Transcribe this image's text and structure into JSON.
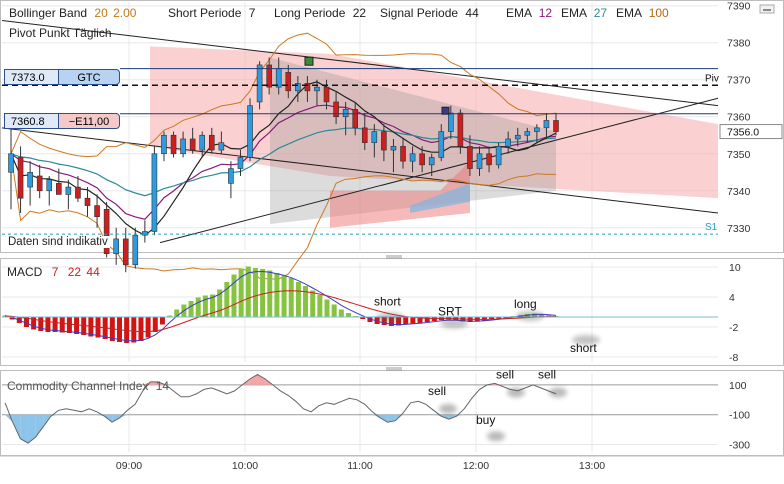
{
  "colors": {
    "background": "#ffffff",
    "grid": "#e8e8e8",
    "axis_text": "#333333",
    "candle_up": "#2e9be0",
    "candle_down": "#cc1f1f",
    "macd_positive": "#86c440",
    "macd_negative": "#d11414",
    "macd_line": "#3c3cc8",
    "signal_line": "#cc2020",
    "cci_line": "#666666",
    "cci_fill_positive": "#f3a6a6",
    "cci_fill_negative": "#8cc4ea",
    "ema12": "#8b1a7a",
    "ema27": "#2a8a9a",
    "ema100": "#b26a14",
    "bollinger": "#cc7a22",
    "pivot_line": "#111111",
    "gtc_line": "#1a3a7a",
    "s1_line": "#2aa0b8",
    "indicator_names": "#333333"
  },
  "header": {
    "bollinger_label": "Bollinger Band",
    "bollinger_period": "20",
    "bollinger_dev": "2.00",
    "short_label": "Short Periode",
    "short_value": "7",
    "long_label": "Long Periode",
    "long_value": "22",
    "signal_label": "Signal Periode",
    "signal_value": "44",
    "ema_label_1": "EMA",
    "ema_value_1": "12",
    "ema_label_2": "EMA",
    "ema_value_2": "27",
    "ema_label_3": "EMA",
    "ema_value_3": "100",
    "pivot_label": "Pivot Punkt Täglich",
    "disclaimer": "Daten sind indikativ"
  },
  "orders": [
    {
      "price": "7373.0",
      "type": "GTC"
    },
    {
      "price": "7360.8",
      "pnl": "−E11,00"
    }
  ],
  "icons": {
    "minimize": "minimize-icon",
    "splitter": "splitter-grip-icon"
  },
  "chart_data": [
    {
      "type": "candlestick",
      "title": "",
      "instrument_axis": {
        "min": 7324,
        "max": 7391,
        "ticks": [
          7330,
          7340,
          7350,
          7360,
          7370,
          7380,
          7390
        ]
      },
      "time_ticks": [
        "09:00",
        "10:00",
        "11:00",
        "12:00",
        "13:00"
      ],
      "last_price": "7356.0",
      "levels": [
        {
          "name": "Piv",
          "value": 7368.5,
          "style": "dashed"
        },
        {
          "name": "S1",
          "value": 7328.3,
          "style": "dotted"
        },
        {
          "name": "GTC",
          "value": 7373.0,
          "style": "solid"
        },
        {
          "name": "Position",
          "value": 7360.8,
          "style": "solid"
        }
      ],
      "candles": [
        {
          "o": 7345,
          "h": 7358,
          "l": 7335,
          "c": 7350
        },
        {
          "o": 7349,
          "h": 7352,
          "l": 7334,
          "c": 7338
        },
        {
          "o": 7341,
          "h": 7348,
          "l": 7336,
          "c": 7345
        },
        {
          "o": 7344,
          "h": 7347,
          "l": 7338,
          "c": 7340
        },
        {
          "o": 7340,
          "h": 7344,
          "l": 7336,
          "c": 7343
        },
        {
          "o": 7342,
          "h": 7346,
          "l": 7339,
          "c": 7339
        },
        {
          "o": 7339,
          "h": 7343,
          "l": 7335,
          "c": 7341
        },
        {
          "o": 7341,
          "h": 7344,
          "l": 7337,
          "c": 7338
        },
        {
          "o": 7338,
          "h": 7341,
          "l": 7333,
          "c": 7336
        },
        {
          "o": 7336,
          "h": 7339,
          "l": 7330,
          "c": 7333
        },
        {
          "o": 7335,
          "h": 7337,
          "l": 7322,
          "c": 7323
        },
        {
          "o": 7323,
          "h": 7330,
          "l": 7320,
          "c": 7327
        },
        {
          "o": 7327,
          "h": 7330,
          "l": 7318,
          "c": 7320
        },
        {
          "o": 7320,
          "h": 7330,
          "l": 7319,
          "c": 7328
        },
        {
          "o": 7328,
          "h": 7332,
          "l": 7326,
          "c": 7329
        },
        {
          "o": 7329,
          "h": 7352,
          "l": 7328,
          "c": 7350
        },
        {
          "o": 7350,
          "h": 7356,
          "l": 7348,
          "c": 7355
        },
        {
          "o": 7355,
          "h": 7356,
          "l": 7349,
          "c": 7350
        },
        {
          "o": 7350,
          "h": 7356,
          "l": 7349,
          "c": 7354
        },
        {
          "o": 7354,
          "h": 7357,
          "l": 7350,
          "c": 7351
        },
        {
          "o": 7351,
          "h": 7356,
          "l": 7349,
          "c": 7355
        },
        {
          "o": 7355,
          "h": 7357,
          "l": 7350,
          "c": 7351
        },
        {
          "o": 7351,
          "h": 7356,
          "l": 7350,
          "c": 7353
        },
        {
          "o": 7342,
          "h": 7348,
          "l": 7338,
          "c": 7346
        },
        {
          "o": 7346,
          "h": 7351,
          "l": 7344,
          "c": 7349
        },
        {
          "o": 7349,
          "h": 7365,
          "l": 7348,
          "c": 7363
        },
        {
          "o": 7364,
          "h": 7375,
          "l": 7362,
          "c": 7374
        },
        {
          "o": 7374,
          "h": 7376,
          "l": 7366,
          "c": 7368
        },
        {
          "o": 7368,
          "h": 7376,
          "l": 7366,
          "c": 7373
        },
        {
          "o": 7372,
          "h": 7374,
          "l": 7365,
          "c": 7367
        },
        {
          "o": 7367,
          "h": 7371,
          "l": 7364,
          "c": 7369
        },
        {
          "o": 7369,
          "h": 7371,
          "l": 7364,
          "c": 7367
        },
        {
          "o": 7367,
          "h": 7370,
          "l": 7363,
          "c": 7368
        },
        {
          "o": 7368,
          "h": 7370,
          "l": 7362,
          "c": 7364
        },
        {
          "o": 7364,
          "h": 7367,
          "l": 7358,
          "c": 7360
        },
        {
          "o": 7360,
          "h": 7364,
          "l": 7355,
          "c": 7362
        },
        {
          "o": 7362,
          "h": 7364,
          "l": 7355,
          "c": 7357
        },
        {
          "o": 7357,
          "h": 7361,
          "l": 7351,
          "c": 7353
        },
        {
          "o": 7353,
          "h": 7358,
          "l": 7349,
          "c": 7356
        },
        {
          "o": 7356,
          "h": 7358,
          "l": 7348,
          "c": 7351
        },
        {
          "o": 7351,
          "h": 7354,
          "l": 7345,
          "c": 7352
        },
        {
          "o": 7352,
          "h": 7354,
          "l": 7346,
          "c": 7348
        },
        {
          "o": 7348,
          "h": 7352,
          "l": 7345,
          "c": 7350
        },
        {
          "o": 7350,
          "h": 7352,
          "l": 7345,
          "c": 7347
        },
        {
          "o": 7347,
          "h": 7350,
          "l": 7344,
          "c": 7349
        },
        {
          "o": 7349,
          "h": 7358,
          "l": 7348,
          "c": 7356
        },
        {
          "o": 7356,
          "h": 7363,
          "l": 7354,
          "c": 7361
        },
        {
          "o": 7361,
          "h": 7362,
          "l": 7350,
          "c": 7352
        },
        {
          "o": 7352,
          "h": 7355,
          "l": 7344,
          "c": 7346
        },
        {
          "o": 7346,
          "h": 7352,
          "l": 7344,
          "c": 7350
        },
        {
          "o": 7350,
          "h": 7352,
          "l": 7345,
          "c": 7347
        },
        {
          "o": 7347,
          "h": 7353,
          "l": 7346,
          "c": 7352
        },
        {
          "o": 7352,
          "h": 7356,
          "l": 7350,
          "c": 7354
        },
        {
          "o": 7354,
          "h": 7357,
          "l": 7352,
          "c": 7355
        },
        {
          "o": 7355,
          "h": 7357,
          "l": 7353,
          "c": 7356
        },
        {
          "o": 7356,
          "h": 7358,
          "l": 7353,
          "c": 7357
        },
        {
          "o": 7357,
          "h": 7361,
          "l": 7354,
          "c": 7359
        },
        {
          "o": 7359,
          "h": 7361,
          "l": 7355,
          "c": 7356
        }
      ]
    },
    {
      "type": "bar",
      "title": "MACD",
      "params": [
        "7",
        "22",
        "44"
      ],
      "y_ticks": [
        10,
        4,
        -2,
        -8
      ],
      "ylim": [
        -9,
        11
      ],
      "values": [
        0.3,
        -0.5,
        -1.2,
        -2.0,
        -2.5,
        -2.8,
        -3.0,
        -3.0,
        -3.1,
        -3.2,
        -3.4,
        -3.6,
        -3.9,
        -4.1,
        -4.4,
        -4.8,
        -5.0,
        -5.2,
        -5.1,
        -4.8,
        -4.1,
        -3.0,
        -1.5,
        0.3,
        1.5,
        2.5,
        3.2,
        3.9,
        4.3,
        4.5,
        5.5,
        7.0,
        8.5,
        9.7,
        10.1,
        9.8,
        9.6,
        9.3,
        8.8,
        8.4,
        7.8,
        7.0,
        6.2,
        5.3,
        4.4,
        3.5,
        2.5,
        1.5,
        0.8,
        0.2,
        -0.4,
        -1.0,
        -1.4,
        -1.6,
        -1.8,
        -1.7,
        -1.5,
        -1.3,
        -1.2,
        -1.0,
        -0.8,
        -0.6,
        -0.5,
        -0.7,
        -0.9,
        -1.0,
        -0.9,
        -0.7,
        -0.5,
        -0.3,
        -0.1,
        0.2,
        0.4,
        0.6,
        0.7,
        0.6,
        0.4,
        0.2
      ],
      "annotations": [
        {
          "text": "short",
          "value": 1.5
        },
        {
          "text": "SRT",
          "value": 0.3
        },
        {
          "text": "long",
          "value": 1.8
        },
        {
          "text": "short",
          "value": -2.2
        }
      ]
    },
    {
      "type": "line",
      "title": "Commodity Channel Index",
      "period": "14",
      "y_ticks": [
        100,
        -100,
        -300
      ],
      "ylim": [
        -350,
        180
      ],
      "values": [
        -20,
        -150,
        -260,
        -290,
        -250,
        -180,
        -110,
        -70,
        -60,
        -70,
        -80,
        -60,
        -80,
        -110,
        -150,
        -120,
        -70,
        -30,
        60,
        120,
        120,
        100,
        60,
        20,
        20,
        40,
        70,
        80,
        60,
        40,
        60,
        100,
        140,
        170,
        140,
        100,
        60,
        30,
        -10,
        -60,
        -80,
        -40,
        -20,
        -30,
        -10,
        10,
        0,
        -30,
        -80,
        -120,
        -150,
        -140,
        -90,
        -20,
        -10,
        -30,
        -70,
        -110,
        -130,
        -110,
        -60,
        10,
        70,
        100,
        110,
        90,
        70,
        60,
        80,
        100,
        80,
        60,
        40
      ],
      "annotations": [
        {
          "text": "sell",
          "value": 20
        },
        {
          "text": "sell",
          "value": 130
        },
        {
          "text": "sell",
          "value": 130
        },
        {
          "text": "buy",
          "value": -150
        }
      ]
    }
  ]
}
